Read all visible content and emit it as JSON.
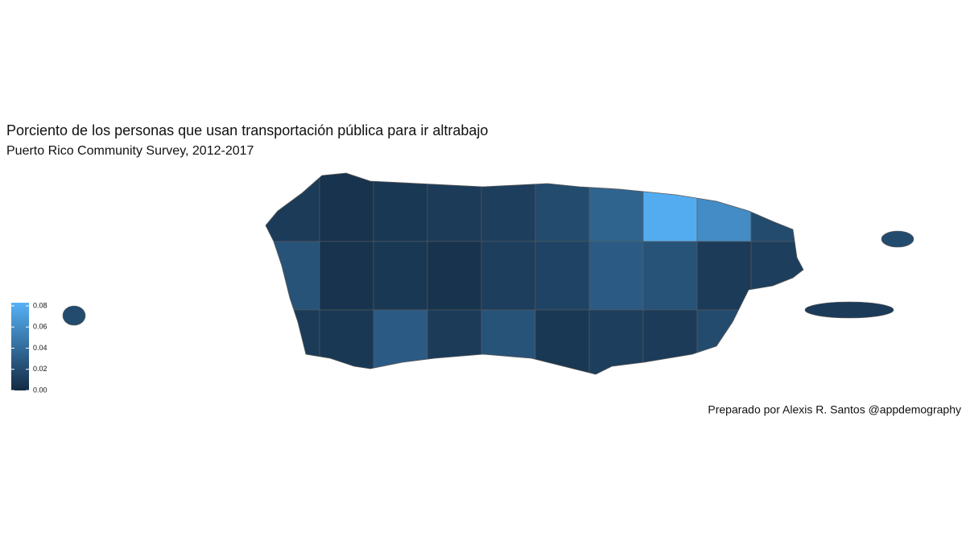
{
  "chart_data": {
    "type": "choropleth",
    "title": "Porciento de los personas que usan transportación pública para ir altrabajo",
    "subtitle": "Puerto Rico Community Survey, 2012-2017",
    "caption": "Preparado por Alexis R. Santos @appdemography",
    "values": [
      0.01,
      0.005,
      0.008,
      0.01,
      0.012,
      0.02,
      0.035,
      0.08,
      0.06,
      0.02,
      0.025,
      0.005,
      0.008,
      0.005,
      0.012,
      0.015,
      0.03,
      0.025,
      0.01,
      0.012,
      0.01,
      0.008,
      0.03,
      0.01,
      0.025,
      0.008,
      0.012,
      0.01,
      0.02,
      0.01,
      0.01,
      0.02,
      0.02
    ],
    "colors": [
      "#132B43",
      "#56B1F7"
    ],
    "legend_lim": [
      0,
      0.083
    ],
    "legend_ticks": [
      {
        "value": 0,
        "label": "0.00"
      },
      0.02,
      0.04,
      0.06,
      0.08
    ]
  }
}
